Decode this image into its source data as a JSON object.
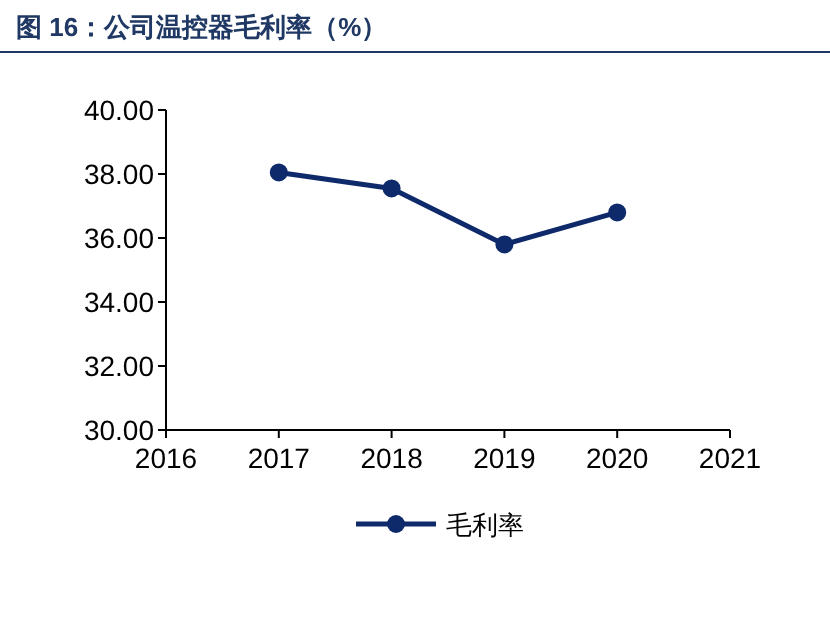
{
  "chart_data": {
    "type": "line",
    "title": "图 16：公司温控器毛利率（%）",
    "x": [
      2017,
      2018,
      2019,
      2020
    ],
    "series": [
      {
        "name": "毛利率",
        "color": "#0f2a6b",
        "values": [
          38.05,
          37.55,
          35.8,
          36.8
        ]
      }
    ],
    "xlim": [
      2016,
      2021
    ],
    "xticks": [
      2016,
      2017,
      2018,
      2019,
      2020,
      2021
    ],
    "ylim": [
      30,
      40
    ],
    "yticks": [
      {
        "value": 30,
        "label": "30.00"
      },
      {
        "value": 32,
        "label": "32.00"
      },
      {
        "value": 34,
        "label": "34.00"
      },
      {
        "value": 36,
        "label": "36.00"
      },
      {
        "value": 38,
        "label": "38.00"
      },
      {
        "value": 40,
        "label": "40.00"
      }
    ],
    "grid": false,
    "legend": "bottom",
    "marker": "circle",
    "line_style": "solid"
  }
}
